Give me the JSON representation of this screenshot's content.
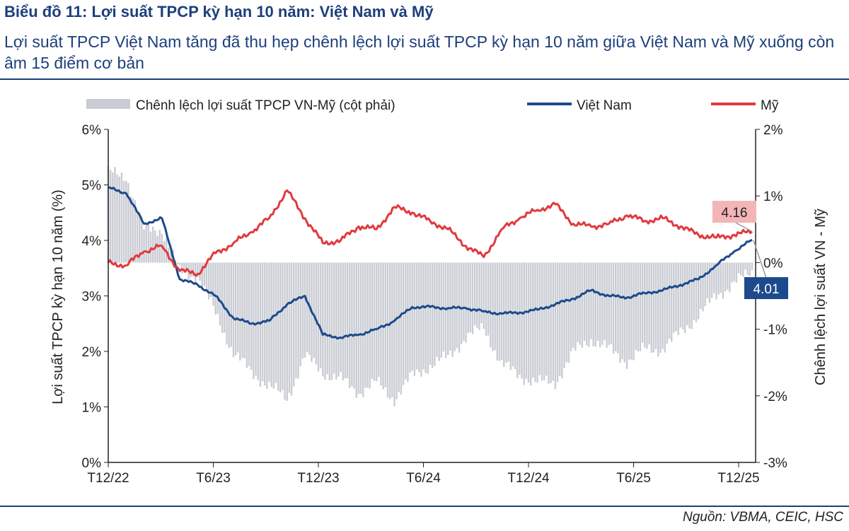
{
  "title": "Biểu đồ 11: Lợi suất TPCP kỳ hạn 10 năm: Việt Nam và Mỹ",
  "subtitle": "Lợi suất TPCP Việt Nam tăng đã thu hẹp chênh lệch lợi suất TPCP kỳ hạn 10 năm giữa Việt Nam và Mỹ xuống còn âm 15 điểm cơ bản",
  "source": "Nguồn: VBMA, CEIC, HSC",
  "chart_data": {
    "type": "line",
    "ylabel": "Lợi suất TPCP kỳ hạn 10 năm (%)",
    "y2label": "Chênh lệch lợi suất VN - Mỹ",
    "ylim": [
      0,
      6
    ],
    "y2lim": [
      -3,
      2
    ],
    "yticks": [
      "0%",
      "1%",
      "2%",
      "3%",
      "4%",
      "5%",
      "6%"
    ],
    "y2ticks": [
      "-3%",
      "-2%",
      "-1%",
      "0%",
      "1%",
      "2%"
    ],
    "xticks": [
      "T12/22",
      "T6/23",
      "T12/23",
      "T6/24",
      "T12/24",
      "T6/25",
      "T12/25"
    ],
    "x": [
      "12/22",
      "1/23",
      "2/23",
      "3/23",
      "4/23",
      "5/23",
      "6/23",
      "7/23",
      "8/23",
      "9/23",
      "10/23",
      "11/23",
      "12/23",
      "1/24",
      "2/24",
      "3/24",
      "4/24",
      "5/24",
      "6/24",
      "7/24",
      "8/24",
      "9/24",
      "10/24",
      "11/24",
      "12/24",
      "1/25",
      "2/25",
      "3/25",
      "4/25",
      "5/25",
      "6/25",
      "7/25",
      "8/25",
      "9/25",
      "10/25",
      "11/25",
      "12/25"
    ],
    "series": [
      {
        "name": "Chênh lệch lợi suất TPCP VN-Mỹ  (cột phải)",
        "type": "bar",
        "axis": "right",
        "color": "#c9ccd3",
        "values": [
          1.35,
          1.3,
          0.5,
          0.5,
          -0.15,
          -0.2,
          -0.77,
          -1.35,
          -1.65,
          -1.85,
          -2.05,
          -1.4,
          -1.65,
          -1.75,
          -1.95,
          -1.8,
          -2.05,
          -1.7,
          -1.55,
          -1.42,
          -1.12,
          -0.98,
          -1.52,
          -1.7,
          -1.8,
          -1.8,
          -1.35,
          -1.15,
          -1.3,
          -1.48,
          -1.3,
          -1.3,
          -1.05,
          -0.8,
          -0.5,
          -0.3,
          -0.15
        ]
      },
      {
        "name": "Việt Nam",
        "type": "line",
        "axis": "left",
        "color": "#1d4a8c",
        "values": [
          4.95,
          4.85,
          4.3,
          4.4,
          3.3,
          3.2,
          3.0,
          2.6,
          2.5,
          2.55,
          2.85,
          3.0,
          2.3,
          2.25,
          2.3,
          2.4,
          2.55,
          2.8,
          2.8,
          2.78,
          2.78,
          2.72,
          2.68,
          2.7,
          2.75,
          2.85,
          2.95,
          3.1,
          3.0,
          2.97,
          3.05,
          3.1,
          3.2,
          3.3,
          3.55,
          3.8,
          4.01
        ]
      },
      {
        "name": "Mỹ",
        "type": "line",
        "axis": "left",
        "color": "#e03a3e",
        "values": [
          3.6,
          3.55,
          3.8,
          3.9,
          3.45,
          3.4,
          3.77,
          3.95,
          4.15,
          4.4,
          4.9,
          4.4,
          3.95,
          4.0,
          4.25,
          4.2,
          4.6,
          4.5,
          4.35,
          4.2,
          3.9,
          3.7,
          4.2,
          4.4,
          4.55,
          4.65,
          4.3,
          4.25,
          4.3,
          4.45,
          4.35,
          4.4,
          4.25,
          4.1,
          4.05,
          4.1,
          4.16
        ]
      }
    ],
    "annotations": [
      "4.16",
      "4.01"
    ],
    "legend": "top",
    "grid": false
  }
}
